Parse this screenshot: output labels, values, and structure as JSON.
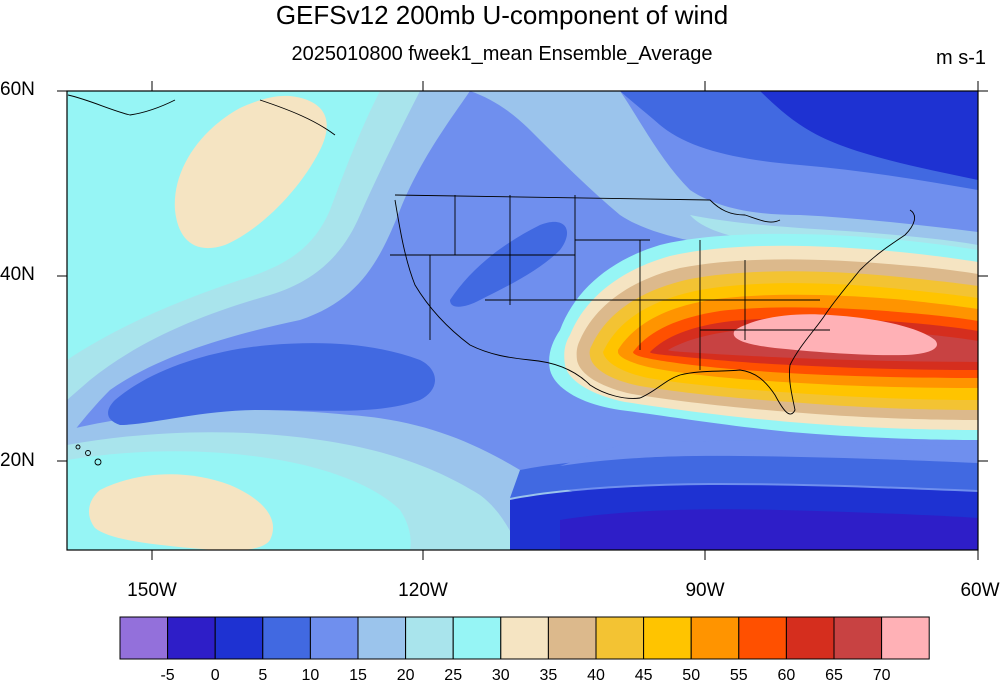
{
  "title": "GEFSv12 200mb U-component of wind",
  "subtitle": "2025010800 fweek1_mean Ensemble_Average",
  "units": "m s-1",
  "lat_labels": [
    "60N",
    "40N",
    "20N"
  ],
  "lon_labels": [
    "150W",
    "120W",
    "90W",
    "60W"
  ],
  "colorbar": {
    "labels": [
      "-5",
      "0",
      "5",
      "10",
      "15",
      "20",
      "25",
      "30",
      "35",
      "40",
      "45",
      "50",
      "55",
      "60",
      "65",
      "70"
    ],
    "colors": [
      "#9370db",
      "#2e1ec8",
      "#1e32d2",
      "#4169e1",
      "#6f8fee",
      "#9bc4ec",
      "#a9e4ec",
      "#96f5f5",
      "#f5e4c2",
      "#dcb98c",
      "#f3c333",
      "#ffc400",
      "#ff9400",
      "#ff5000",
      "#d52e1e",
      "#c84242",
      "#ffb1b6"
    ]
  },
  "colors": {
    "background_field": "#6f8fee",
    "jet_core": "#ffb1b6"
  }
}
